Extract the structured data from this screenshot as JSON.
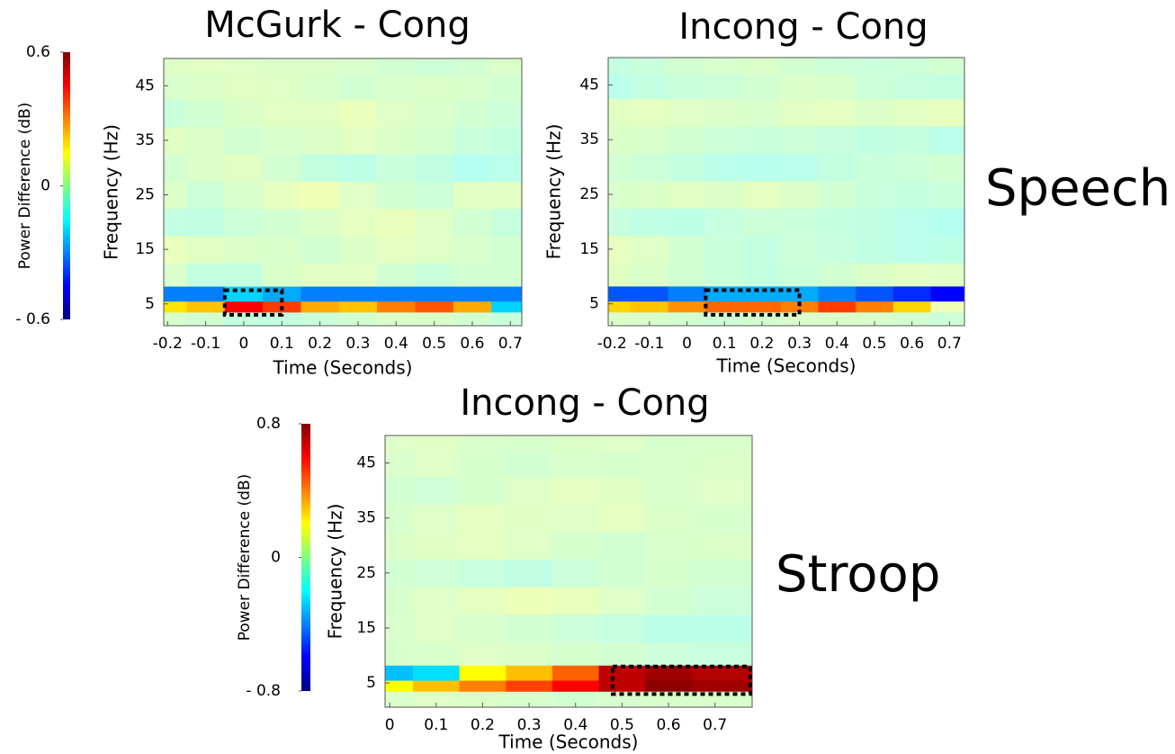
{
  "chart_data": [
    {
      "type": "heatmap",
      "title": "McGurk - Cong",
      "x_label": "Time (Seconds)",
      "y_label": "Frequency (Hz)",
      "xlim": [
        -0.21,
        0.73
      ],
      "ylim": [
        1,
        50
      ],
      "xticks": [
        -0.2,
        -0.1,
        0,
        0.1,
        0.2,
        0.3,
        0.4,
        0.5,
        0.6,
        0.7
      ],
      "yticks": [
        5,
        15,
        25,
        35,
        45
      ],
      "x": [
        -0.2,
        -0.1,
        0,
        0.1,
        0.2,
        0.3,
        0.4,
        0.5,
        0.6,
        0.7
      ],
      "y": [
        2.5,
        4.5,
        6.5,
        10,
        15,
        20,
        25,
        30,
        35,
        40,
        45,
        49
      ],
      "values": [
        [
          0.02,
          0,
          -0.05,
          -0.05,
          -0.03,
          0,
          0.03,
          0.03,
          0,
          -0.03
        ],
        [
          0.18,
          0.22,
          0.45,
          0.38,
          0.25,
          0.22,
          0.3,
          0.35,
          0.25,
          -0.2
        ],
        [
          -0.3,
          -0.3,
          -0.2,
          -0.25,
          -0.3,
          -0.3,
          -0.3,
          -0.3,
          -0.3,
          -0.3
        ],
        [
          0.02,
          -0.05,
          -0.05,
          0.03,
          0.05,
          0.05,
          0,
          -0.03,
          0,
          0
        ],
        [
          0.08,
          0.05,
          0.03,
          0.02,
          0,
          0.03,
          0.06,
          0.04,
          0.02,
          0
        ],
        [
          -0.05,
          -0.06,
          -0.02,
          0,
          0.03,
          0.06,
          0.08,
          0.04,
          0,
          -0.04
        ],
        [
          0.03,
          -0.02,
          0.02,
          0.07,
          0.1,
          0.04,
          0,
          -0.02,
          0.05,
          0.05
        ],
        [
          0,
          0.03,
          0.05,
          0,
          -0.05,
          -0.07,
          -0.03,
          -0.06,
          -0.1,
          -0.08
        ],
        [
          0.05,
          0.03,
          0,
          0.02,
          0.03,
          0.05,
          0.03,
          0.01,
          -0.03,
          -0.05
        ],
        [
          -0.03,
          0,
          0.03,
          0.05,
          0.05,
          0.08,
          0.04,
          0.02,
          0,
          -0.02
        ],
        [
          0.02,
          0.03,
          0.05,
          0.04,
          0.02,
          0,
          0.02,
          0.03,
          0.02,
          0
        ],
        [
          0.04,
          0.05,
          0.04,
          0.03,
          0.03,
          0.02,
          0,
          -0.02,
          0,
          0.03
        ]
      ],
      "clim": [
        -0.6,
        0.6
      ],
      "colorbar": {
        "label": "Power Difference (dB)",
        "ticks": [
          {
            "value": -0.6,
            "label": "- 0.6"
          },
          0,
          0.6
        ]
      },
      "highlight_box": {
        "x": [
          -0.05,
          0.1
        ],
        "y": [
          3,
          7.5
        ]
      }
    },
    {
      "type": "heatmap",
      "title": "Incong - Cong",
      "x_label": "Time (Seconds)",
      "y_label": "Frequency (Hz)",
      "xlim": [
        -0.21,
        0.74
      ],
      "ylim": [
        1,
        50
      ],
      "xticks": [
        -0.2,
        -0.1,
        0,
        0.1,
        0.2,
        0.3,
        0.4,
        0.5,
        0.6,
        0.7
      ],
      "yticks": [
        5,
        15,
        25,
        35,
        45
      ],
      "x": [
        -0.2,
        -0.1,
        0,
        0.1,
        0.2,
        0.3,
        0.4,
        0.5,
        0.6,
        0.7
      ],
      "y": [
        2.5,
        4.5,
        6.5,
        10,
        15,
        20,
        25,
        30,
        35,
        40,
        45,
        49
      ],
      "values": [
        [
          0.03,
          0.02,
          0,
          -0.02,
          0,
          0.02,
          0.03,
          0.02,
          0,
          -0.02
        ],
        [
          0.2,
          0.22,
          0.28,
          0.33,
          0.33,
          0.3,
          0.38,
          0.3,
          0.2,
          0.1
        ],
        [
          -0.35,
          -0.35,
          -0.3,
          -0.25,
          -0.25,
          -0.25,
          -0.3,
          -0.35,
          -0.4,
          -0.45
        ],
        [
          0.05,
          0.03,
          0,
          -0.03,
          -0.05,
          -0.03,
          0,
          0.03,
          0.05,
          0.04
        ],
        [
          0.07,
          0.04,
          0,
          -0.03,
          -0.05,
          -0.02,
          -0.04,
          -0.06,
          -0.08,
          -0.07
        ],
        [
          -0.04,
          -0.06,
          -0.07,
          -0.04,
          -0.02,
          -0.03,
          -0.05,
          -0.06,
          -0.08,
          -0.1
        ],
        [
          0.02,
          0.03,
          0.05,
          0.03,
          0.06,
          0.03,
          0,
          -0.03,
          -0.05,
          -0.03
        ],
        [
          0,
          -0.02,
          -0.05,
          -0.08,
          -0.09,
          -0.08,
          -0.05,
          -0.03,
          -0.02,
          0
        ],
        [
          0.03,
          0.02,
          0,
          -0.02,
          -0.03,
          -0.02,
          -0.04,
          -0.06,
          -0.05,
          -0.08
        ],
        [
          0.05,
          0.06,
          0.04,
          0.03,
          0.02,
          0.05,
          0.06,
          0.03,
          0.05,
          0.07
        ],
        [
          -0.08,
          -0.05,
          -0.03,
          -0.02,
          0,
          0.03,
          0.02,
          -0.02,
          -0.04,
          -0.05
        ],
        [
          -0.05,
          -0.03,
          0,
          0.02,
          0.03,
          0,
          -0.02,
          -0.03,
          -0.02,
          0
        ]
      ],
      "clim": [
        -0.6,
        0.6
      ],
      "highlight_box": {
        "x": [
          0.05,
          0.3
        ],
        "y": [
          3,
          7.5
        ]
      }
    },
    {
      "type": "heatmap",
      "title": "Incong - Cong",
      "x_label": "Time (Seconds)",
      "y_label": "Frequency (Hz)",
      "xlim": [
        -0.01,
        0.78
      ],
      "ylim": [
        0.6,
        50
      ],
      "xticks": [
        0,
        0.1,
        0.2,
        0.3,
        0.4,
        0.5,
        0.6,
        0.7
      ],
      "yticks": [
        5,
        15,
        25,
        35,
        45
      ],
      "x": [
        0,
        0.1,
        0.2,
        0.3,
        0.4,
        0.5,
        0.6,
        0.7
      ],
      "y": [
        2.5,
        4.5,
        6.5,
        10,
        15,
        20,
        25,
        30,
        35,
        40,
        45,
        49
      ],
      "values": [
        [
          0.03,
          0.05,
          0.04,
          0.02,
          0,
          0.02,
          0.03,
          0.03
        ],
        [
          0.2,
          0.3,
          0.4,
          0.5,
          0.6,
          0.7,
          0.78,
          0.75
        ],
        [
          -0.3,
          -0.25,
          0.2,
          0.3,
          0.45,
          0.7,
          0.75,
          0.72
        ],
        [
          0.02,
          0.03,
          0.05,
          0.04,
          0.02,
          0,
          -0.03,
          -0.05
        ],
        [
          0.03,
          0.05,
          0.03,
          0,
          -0.03,
          -0.06,
          -0.1,
          -0.1
        ],
        [
          0.02,
          0.05,
          0.08,
          0.12,
          0.1,
          0.05,
          0,
          -0.03
        ],
        [
          0,
          -0.02,
          -0.05,
          -0.08,
          -0.03,
          0,
          0.02,
          0
        ],
        [
          0.04,
          0.06,
          0.08,
          0.05,
          0.02,
          0,
          0.03,
          0.04
        ],
        [
          0.02,
          0.05,
          0.08,
          0.06,
          0.05,
          0.08,
          0.04,
          0.02
        ],
        [
          0,
          -0.02,
          0.02,
          0.05,
          0.08,
          0.06,
          0.03,
          0.05
        ],
        [
          0.03,
          0.05,
          0.02,
          0,
          0.03,
          0.02,
          0.03,
          0.04
        ],
        [
          0.05,
          0.06,
          0.03,
          0.02,
          0.04,
          0.05,
          0.02,
          0.03
        ]
      ],
      "clim": [
        -0.8,
        0.8
      ],
      "colorbar": {
        "label": "Power Difference (dB)",
        "ticks": [
          {
            "value": -0.8,
            "label": "- 0.8"
          },
          0,
          0.8
        ]
      },
      "highlight_box": {
        "x": [
          0.48,
          0.78
        ],
        "y": [
          3,
          8
        ]
      }
    }
  ],
  "row_labels": [
    "Speech",
    "Stroop"
  ]
}
